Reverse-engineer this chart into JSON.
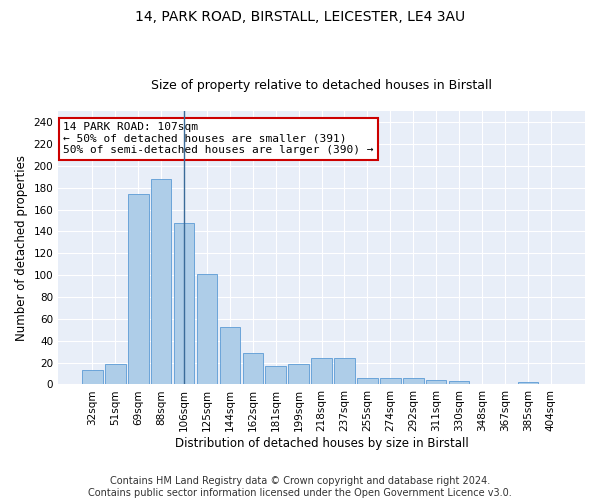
{
  "title1": "14, PARK ROAD, BIRSTALL, LEICESTER, LE4 3AU",
  "title2": "Size of property relative to detached houses in Birstall",
  "xlabel": "Distribution of detached houses by size in Birstall",
  "ylabel": "Number of detached properties",
  "categories": [
    "32sqm",
    "51sqm",
    "69sqm",
    "88sqm",
    "106sqm",
    "125sqm",
    "144sqm",
    "162sqm",
    "181sqm",
    "199sqm",
    "218sqm",
    "237sqm",
    "255sqm",
    "274sqm",
    "292sqm",
    "311sqm",
    "330sqm",
    "348sqm",
    "367sqm",
    "385sqm",
    "404sqm"
  ],
  "values": [
    13,
    19,
    174,
    188,
    148,
    101,
    53,
    29,
    17,
    19,
    24,
    24,
    6,
    6,
    6,
    4,
    3,
    0,
    0,
    2,
    0
  ],
  "bar_color": "#aecde8",
  "bar_edge_color": "#5b9bd5",
  "vline_x_index": 4,
  "vline_color": "#3a6b99",
  "annotation_text": "14 PARK ROAD: 107sqm\n← 50% of detached houses are smaller (391)\n50% of semi-detached houses are larger (390) →",
  "annotation_box_color": "#ffffff",
  "annotation_box_edge": "#cc0000",
  "ylim": [
    0,
    250
  ],
  "yticks": [
    0,
    20,
    40,
    60,
    80,
    100,
    120,
    140,
    160,
    180,
    200,
    220,
    240
  ],
  "background_color": "#e8eef8",
  "grid_color": "#ffffff",
  "footer_line1": "Contains HM Land Registry data © Crown copyright and database right 2024.",
  "footer_line2": "Contains public sector information licensed under the Open Government Licence v3.0.",
  "title1_fontsize": 10,
  "title2_fontsize": 9,
  "tick_fontsize": 7.5,
  "xlabel_fontsize": 8.5,
  "ylabel_fontsize": 8.5,
  "annotation_fontsize": 8,
  "footer_fontsize": 7
}
